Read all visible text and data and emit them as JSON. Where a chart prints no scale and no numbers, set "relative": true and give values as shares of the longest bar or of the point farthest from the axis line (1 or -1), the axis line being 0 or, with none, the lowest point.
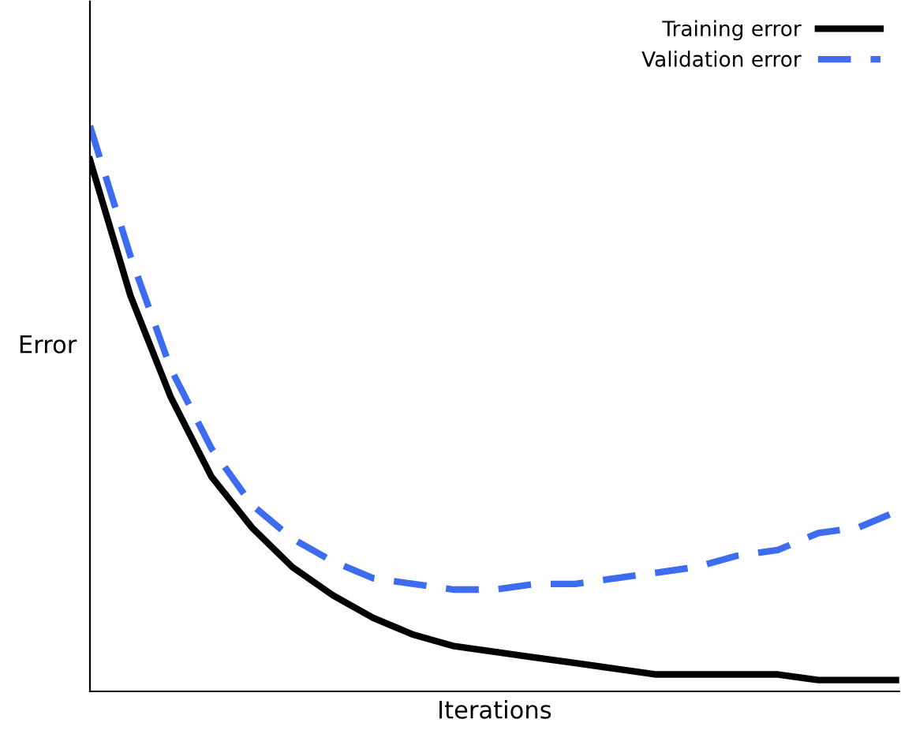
{
  "chart_data": {
    "type": "line",
    "relative": true,
    "xlabel": "Iterations",
    "ylabel": "Error",
    "legend": "top right",
    "grid": false,
    "tick_labels": false,
    "categories": [
      null,
      null,
      null,
      null,
      null,
      null,
      null,
      null,
      null,
      null,
      null,
      null,
      null,
      null,
      null,
      null,
      null,
      null,
      null,
      null,
      null
    ],
    "series": [
      {
        "name": "Training error",
        "color": "#000000",
        "line_style": "solid",
        "values": [
          0.94,
          0.7,
          0.52,
          0.38,
          0.29,
          0.22,
          0.17,
          0.13,
          0.1,
          0.08,
          0.07,
          0.06,
          0.05,
          0.04,
          0.03,
          0.03,
          0.03,
          0.03,
          0.02,
          0.02,
          0.02
        ]
      },
      {
        "name": "Validation error",
        "color": "#3d6cf0",
        "line_style": "dashed",
        "values": [
          1.0,
          0.77,
          0.57,
          0.43,
          0.33,
          0.27,
          0.23,
          0.2,
          0.19,
          0.18,
          0.18,
          0.19,
          0.19,
          0.2,
          0.21,
          0.22,
          0.24,
          0.25,
          0.28,
          0.29,
          0.32
        ]
      }
    ]
  }
}
